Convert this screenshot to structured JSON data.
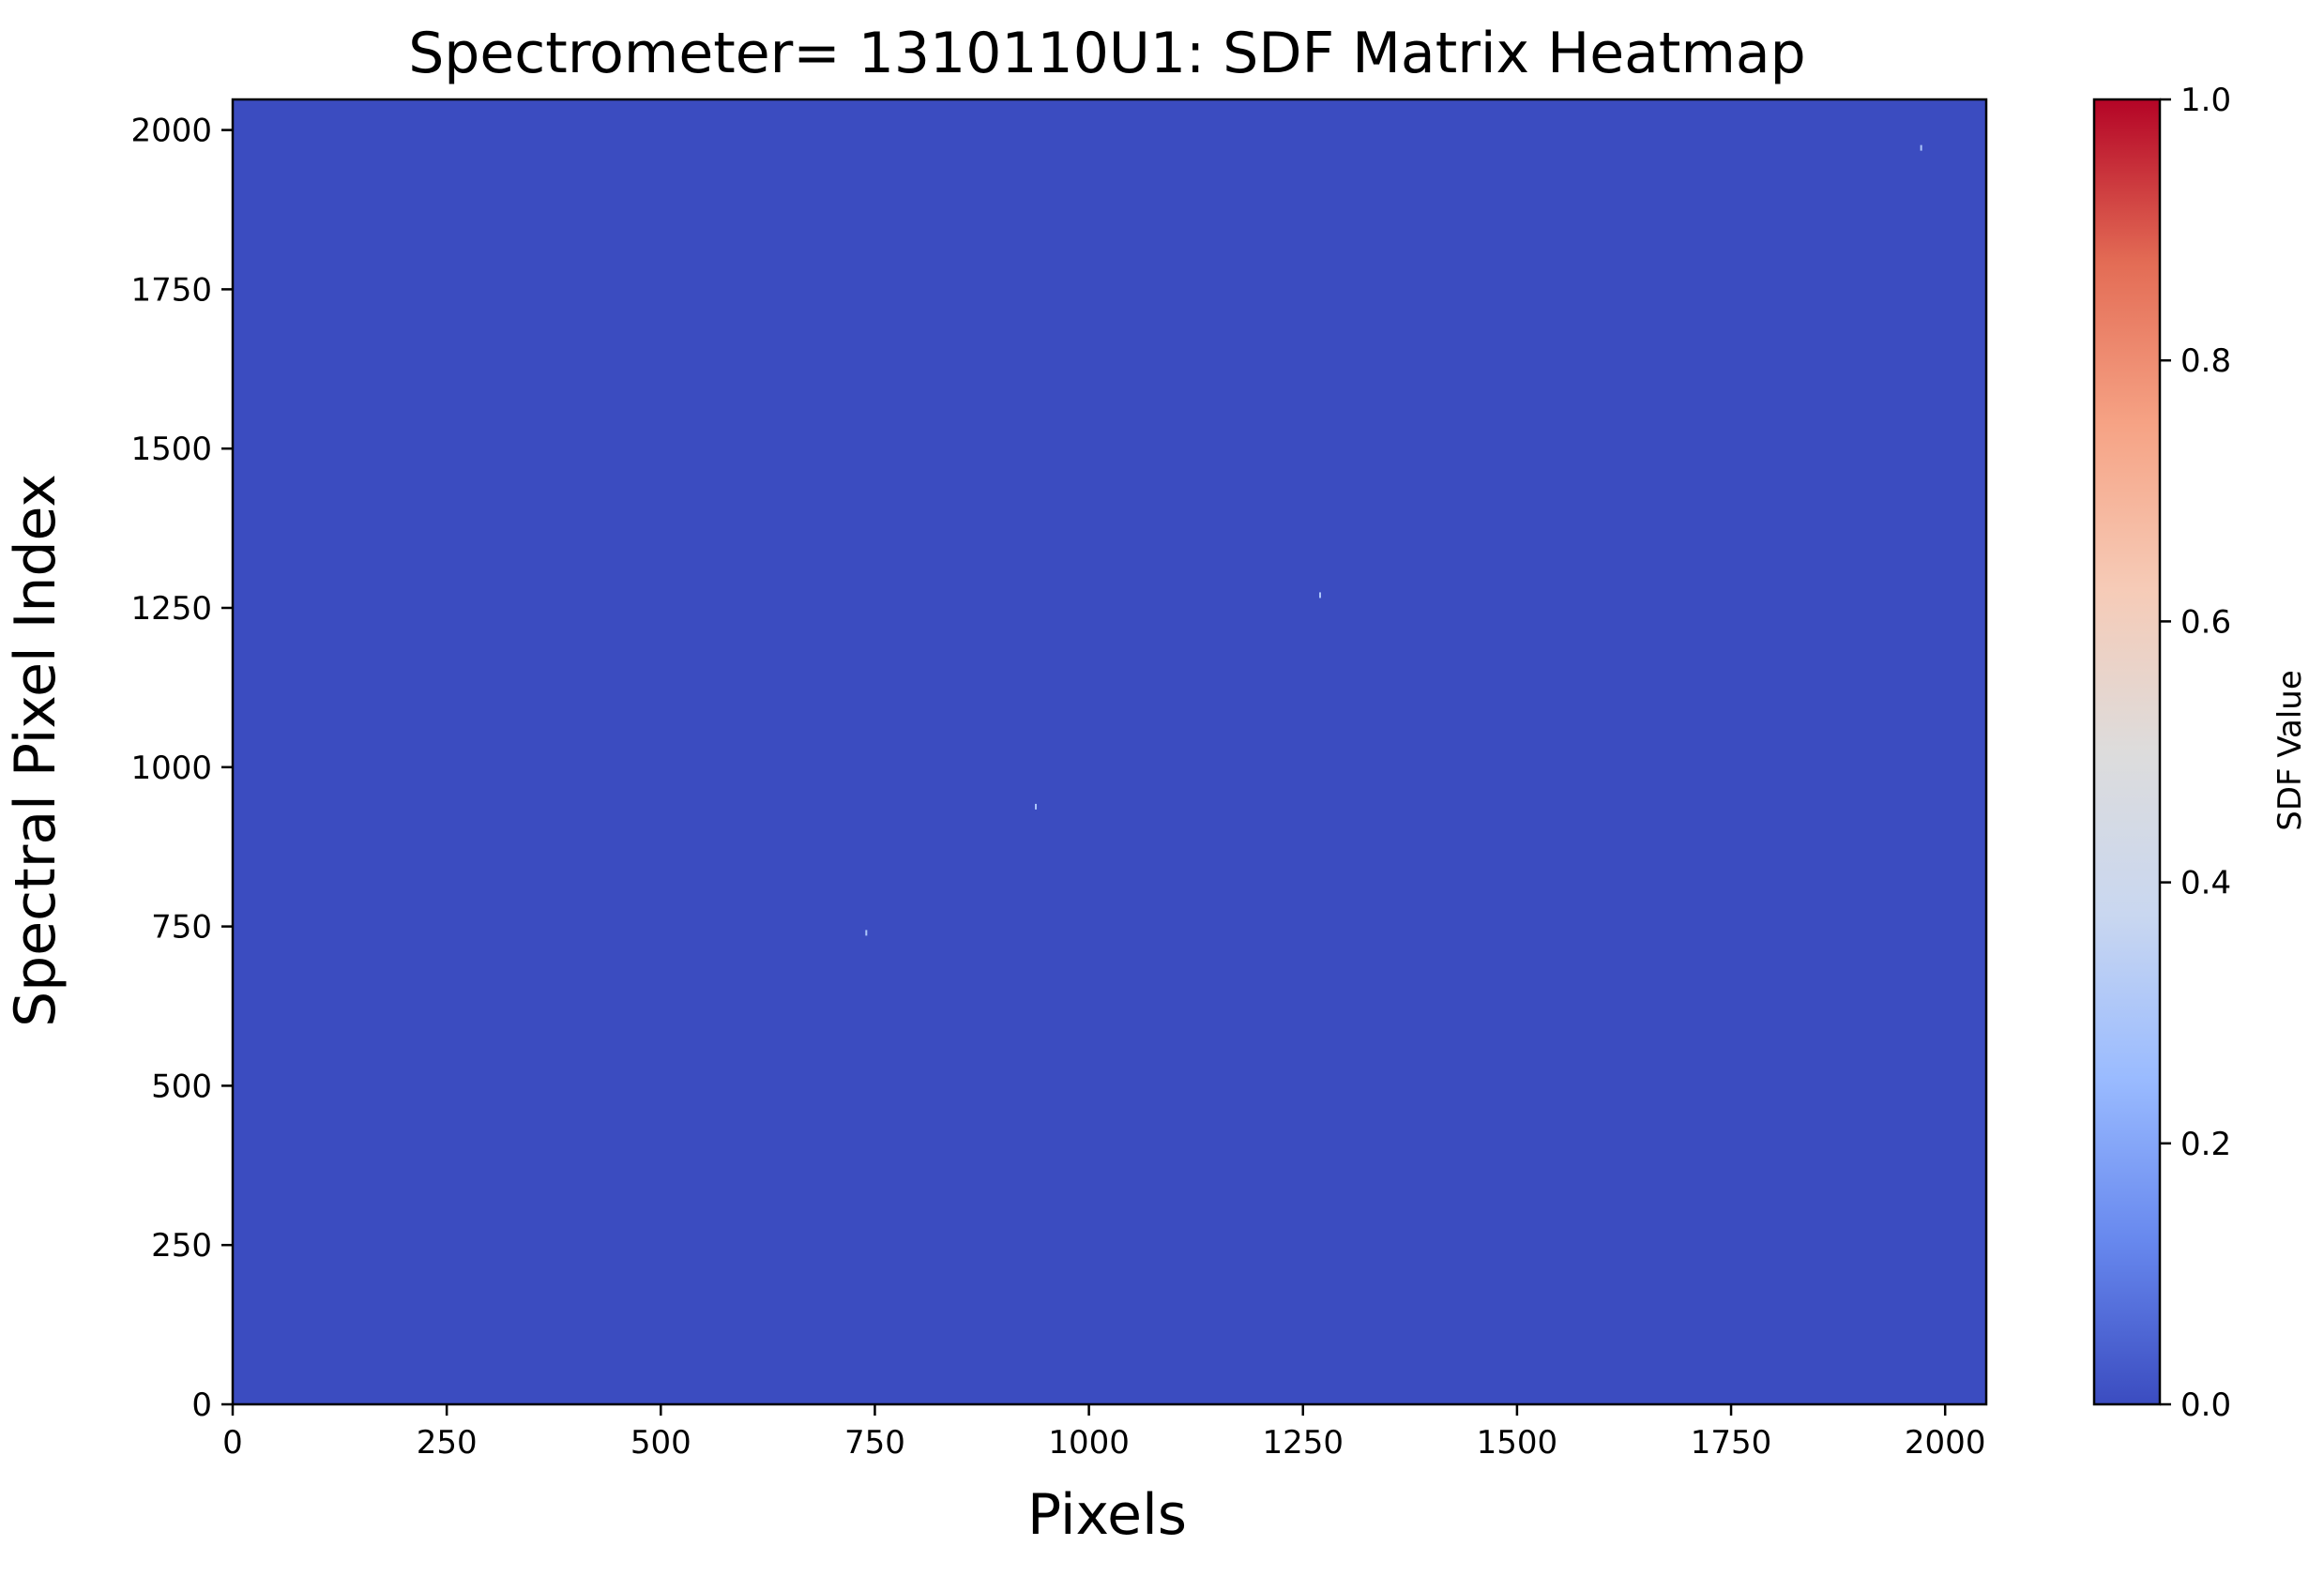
{
  "chart_data": {
    "type": "heatmap",
    "title": "Spectrometer= 1310110U1: SDF Matrix Heatmap",
    "xlabel": "Pixels",
    "ylabel": "Spectral Pixel Index",
    "xlim": [
      0,
      2048
    ],
    "ylim": [
      0,
      2048
    ],
    "x_ticks": [
      0,
      250,
      500,
      750,
      1000,
      1250,
      1500,
      1750,
      2000
    ],
    "y_ticks": [
      0,
      250,
      500,
      750,
      1000,
      1250,
      1500,
      1750,
      2000
    ],
    "background_value": 0.0,
    "highlight_points": [
      {
        "x": 740,
        "y": 740,
        "value": 0.3
      },
      {
        "x": 938,
        "y": 938,
        "value": 0.3
      },
      {
        "x": 1270,
        "y": 1270,
        "value": 0.3
      },
      {
        "x": 1972,
        "y": 1972,
        "value": 0.3
      }
    ],
    "colorbar": {
      "label": "SDF Value",
      "colormap": "coolwarm",
      "range": [
        0.0,
        1.0
      ],
      "ticks": [
        0.0,
        0.2,
        0.4,
        0.6,
        0.8,
        1.0
      ],
      "tick_labels": [
        "0.0",
        "0.2",
        "0.4",
        "0.6",
        "0.8",
        "1.0"
      ],
      "stops": [
        "#3b4cc0",
        "#6788ee",
        "#9abbff",
        "#c9d7f0",
        "#dddcdc",
        "#f6cbb7",
        "#f6a385",
        "#e36c55",
        "#b40426"
      ]
    },
    "grid": false,
    "legend": "none"
  }
}
